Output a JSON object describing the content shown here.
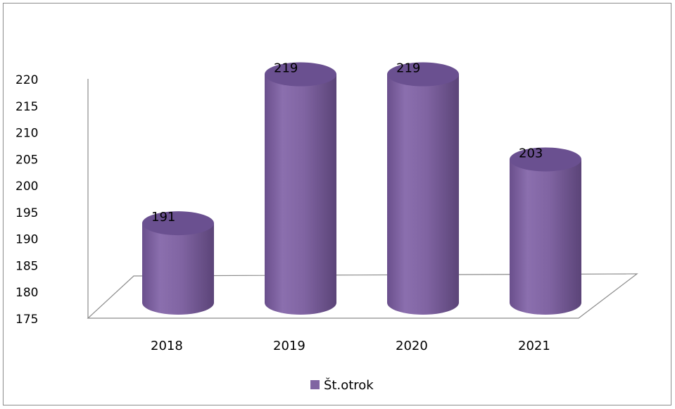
{
  "chart_data": {
    "type": "bar",
    "style": "3d-cylinder",
    "categories": [
      "2018",
      "2019",
      "2020",
      "2021"
    ],
    "series": [
      {
        "name": "Št.otrok",
        "values": [
          191,
          219,
          219,
          203
        ],
        "color": "#8064a2"
      }
    ],
    "data_labels": [
      "191",
      "219",
      "219",
      "203"
    ],
    "y_ticks": [
      "175",
      "180",
      "185",
      "190",
      "195",
      "200",
      "205",
      "210",
      "215",
      "220"
    ],
    "ylim": [
      175,
      220
    ],
    "legend_position": "bottom",
    "grid": false
  }
}
